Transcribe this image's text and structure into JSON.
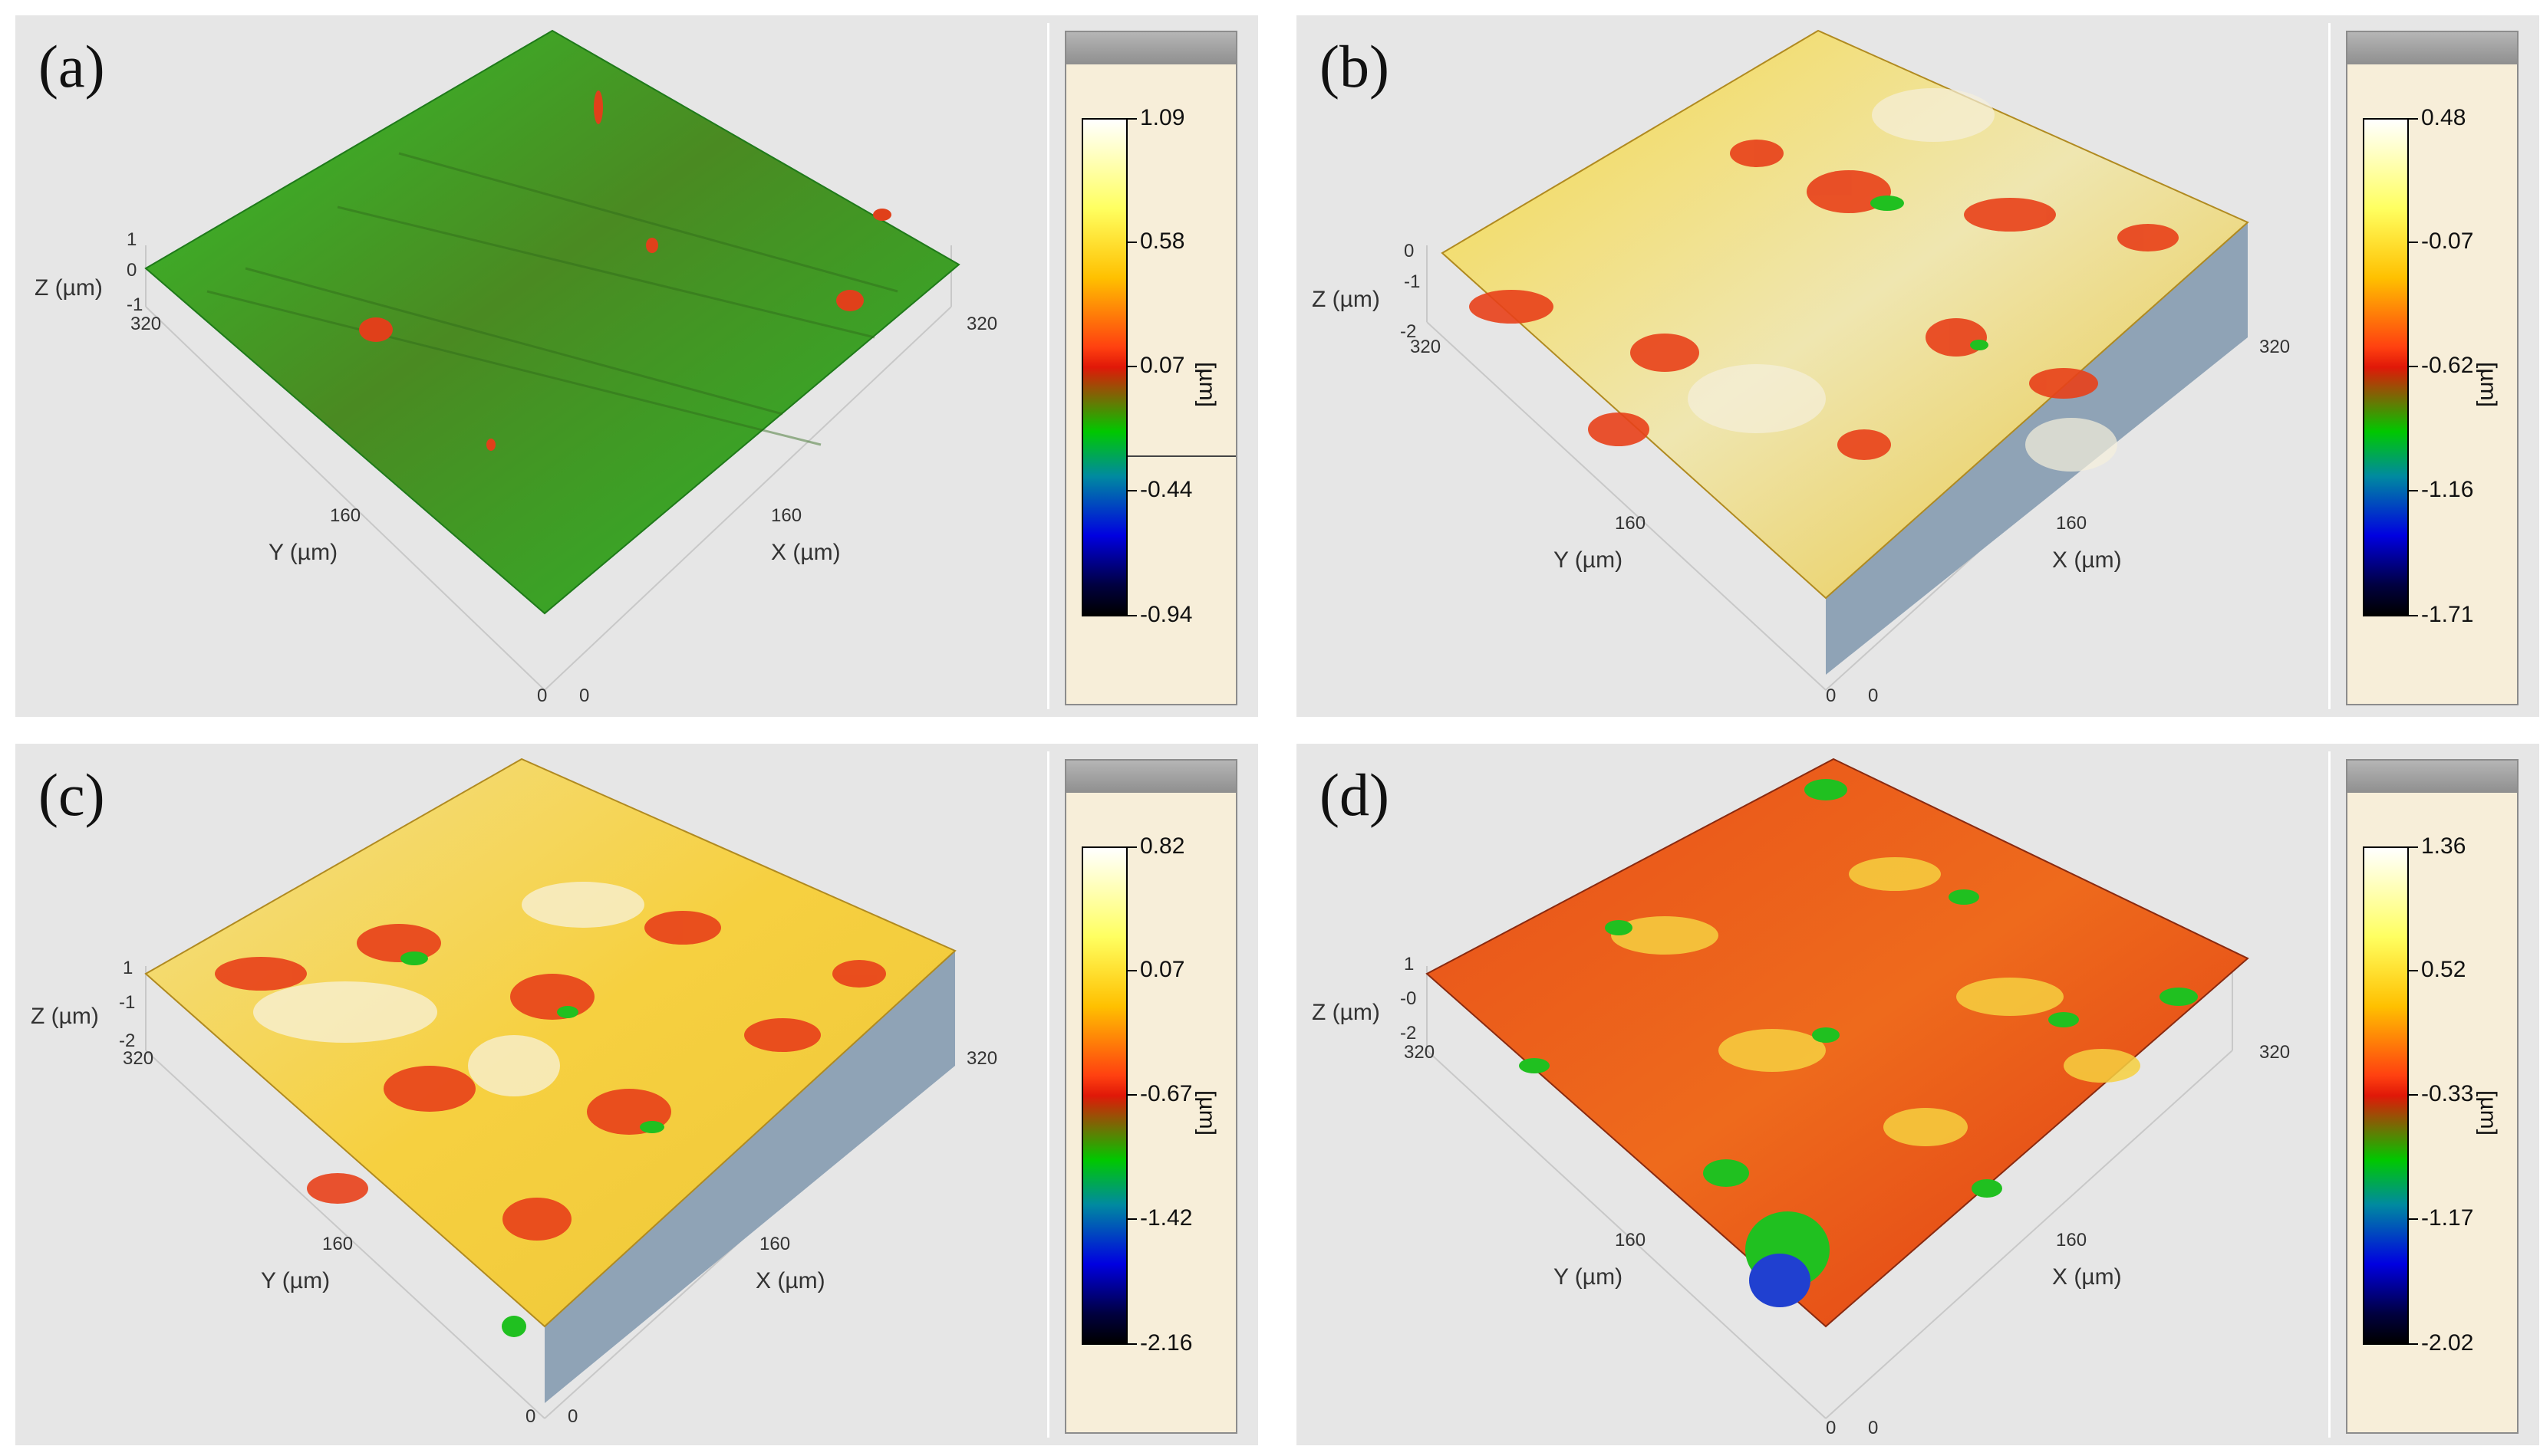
{
  "panels": {
    "a": {
      "label": "(a)",
      "axes": {
        "z_label": "Z (µm)",
        "z_ticks": [
          "1",
          "0",
          "-1"
        ],
        "y_label": "Y (µm)",
        "x_label": "X (µm)",
        "x_origin": "0",
        "y_origin": "0",
        "x_mid": "160",
        "y_mid": "160",
        "x_max": "320",
        "y_max": "320"
      },
      "scale": {
        "ticks": [
          "1.09",
          "0.58",
          "0.07",
          "-0.44",
          "-0.94"
        ],
        "unit": "[µm]"
      }
    },
    "b": {
      "label": "(b)",
      "axes": {
        "z_label": "Z (µm)",
        "z_ticks": [
          "0",
          "-1",
          "-2"
        ],
        "y_label": "Y (µm)",
        "x_label": "X (µm)",
        "x_origin": "0",
        "y_origin": "0",
        "x_mid": "160",
        "y_mid": "160",
        "x_max": "320",
        "y_max": "320"
      },
      "scale": {
        "ticks": [
          "0.48",
          "-0.07",
          "-0.62",
          "-1.16",
          "-1.71"
        ],
        "unit": "[µm]"
      }
    },
    "c": {
      "label": "(c)",
      "axes": {
        "z_label": "Z (µm)",
        "z_ticks": [
          "1",
          "-1",
          "-2"
        ],
        "y_label": "Y (µm)",
        "x_label": "X (µm)",
        "x_origin": "0",
        "y_origin": "0",
        "x_mid": "160",
        "y_mid": "160",
        "x_max": "320",
        "y_max": "320"
      },
      "scale": {
        "ticks": [
          "0.82",
          "0.07",
          "-0.67",
          "-1.42",
          "-2.16"
        ],
        "unit": "[µm]"
      }
    },
    "d": {
      "label": "(d)",
      "axes": {
        "z_label": "Z (µm)",
        "z_ticks": [
          "1",
          "-0",
          "-2"
        ],
        "y_label": "Y (µm)",
        "x_label": "X (µm)",
        "x_origin": "0",
        "y_origin": "0",
        "x_mid": "160",
        "y_mid": "160",
        "x_max": "320",
        "y_max": "320"
      },
      "scale": {
        "ticks": [
          "1.36",
          "0.52",
          "-0.33",
          "-1.17",
          "-2.02"
        ],
        "unit": "[µm]"
      }
    }
  },
  "colors": {
    "panel_bg": "#e6e6e6",
    "scale_bg": "#f7eed9",
    "surface_a": "#2fb42a",
    "surface_peak": "#e02a10",
    "surface_mid": "#f2d23a",
    "surface_low": "#20c020",
    "side_wall": "#8fa3b6"
  }
}
